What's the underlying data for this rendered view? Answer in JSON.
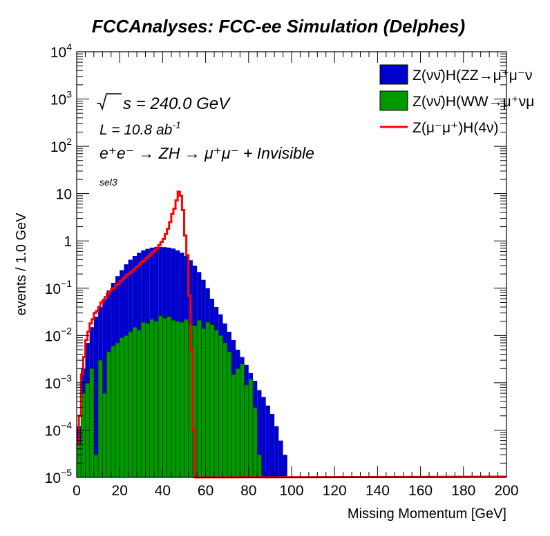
{
  "chart_data": {
    "type": "area",
    "title": "FCCAnalyses: FCC-ee Simulation (Delphes)",
    "xlabel": "Missing Momentum [GeV]",
    "ylabel": "events / 1.0 GeV",
    "xlim": [
      0,
      200
    ],
    "ylim": [
      1e-05,
      10000
    ],
    "y_scale": "log",
    "x_ticks": [
      {
        "value": 0,
        "label": "0"
      },
      {
        "value": 20,
        "label": "20"
      },
      {
        "value": 40,
        "label": "40"
      },
      {
        "value": 60,
        "label": "60"
      },
      {
        "value": 80,
        "label": "80"
      },
      {
        "value": 100,
        "label": "100"
      },
      {
        "value": 120,
        "label": "120"
      },
      {
        "value": 140,
        "label": "140"
      },
      {
        "value": 160,
        "label": "160"
      },
      {
        "value": 180,
        "label": "180"
      },
      {
        "value": 200,
        "label": "200"
      }
    ],
    "y_ticks": [
      {
        "value": 10000,
        "base": "10",
        "exp": "4"
      },
      {
        "value": 1000,
        "base": "10",
        "exp": "3"
      },
      {
        "value": 100,
        "base": "10",
        "exp": "2"
      },
      {
        "value": 10,
        "base": "10",
        "exp": ""
      },
      {
        "value": 1,
        "base": "1",
        "exp": ""
      },
      {
        "value": 0.1,
        "base": "10",
        "exp": "−1"
      },
      {
        "value": 0.01,
        "base": "10",
        "exp": "−2"
      },
      {
        "value": 0.001,
        "base": "10",
        "exp": "−3"
      },
      {
        "value": 0.0001,
        "base": "10",
        "exp": "−4"
      },
      {
        "value": 1e-05,
        "base": "10",
        "exp": "−5"
      }
    ],
    "annotations": {
      "sqrt_s": "s = 240.0 GeV",
      "lumi": "L = 10.8 ab",
      "lumi_exp": "-1",
      "process": "e⁺e⁻ → ZH → μ⁺μ⁻ + Invisible",
      "selection": "sel3"
    },
    "legend_position": "top-right",
    "legend": [
      {
        "label": "Z(νν̄)H(ZZ→μ⁺μ⁻ν",
        "color": "#0000cc",
        "style": "fill"
      },
      {
        "label": "Z(νν̄)H(WW→μ⁺νμ",
        "color": "#009900",
        "style": "fill"
      },
      {
        "label": "Z(μ⁻μ⁺)H(4ν)",
        "color": "#ff0000",
        "style": "line"
      }
    ],
    "bin_width": 1.0,
    "series": [
      {
        "name": "Z(νν̄)H(ZZ→μ⁺μ⁻ν",
        "color": "#0000cc",
        "style": "stacked-fill",
        "x": [
          1,
          3,
          5,
          7,
          9,
          11,
          13,
          15,
          17,
          19,
          21,
          23,
          25,
          27,
          29,
          31,
          33,
          35,
          37,
          39,
          41,
          43,
          45,
          47,
          49,
          51,
          53,
          55,
          57,
          59,
          61,
          63,
          65,
          67,
          69,
          71,
          73,
          75,
          77,
          79,
          81,
          83,
          85,
          87,
          89,
          91,
          93,
          95,
          97
        ],
        "values": [
          0.00012,
          0.002,
          0.007,
          0.015,
          0.025,
          0.04,
          0.06,
          0.09,
          0.13,
          0.18,
          0.24,
          0.32,
          0.4,
          0.48,
          0.56,
          0.63,
          0.68,
          0.72,
          0.74,
          0.75,
          0.74,
          0.72,
          0.69,
          0.63,
          0.56,
          0.48,
          0.39,
          0.3,
          0.22,
          0.15,
          0.1,
          0.06,
          0.04,
          0.028,
          0.018,
          0.012,
          0.008,
          0.005,
          0.0035,
          0.0024,
          0.0016,
          0.0011,
          0.0007,
          0.0005,
          0.00033,
          0.00022,
          0.00012,
          6e-05,
          3e-05
        ]
      },
      {
        "name": "Z(νν̄)H(WW→μ⁺νμ",
        "color": "#009900",
        "style": "fill",
        "x": [
          1,
          3,
          5,
          7,
          9,
          11,
          13,
          15,
          17,
          19,
          21,
          23,
          25,
          27,
          29,
          31,
          33,
          35,
          37,
          39,
          41,
          43,
          45,
          47,
          49,
          51,
          53,
          55,
          57,
          59,
          61,
          63,
          65,
          67,
          69,
          71,
          73,
          75,
          77,
          79,
          81,
          83,
          85,
          87,
          89,
          91,
          93,
          95,
          97
        ],
        "values": [
          5e-05,
          0.0006,
          0.001,
          0.002,
          3e-05,
          0.003,
          0.0006,
          0.0045,
          0.006,
          0.007,
          0.009,
          0.01,
          0.012,
          0.015,
          0.013,
          0.019,
          0.018,
          0.022,
          0.02,
          0.026,
          0.023,
          0.025,
          0.021,
          0.02,
          0.019,
          0.022,
          0.017,
          0.016,
          0.021,
          0.014,
          0.019,
          0.017,
          0.013,
          0.01,
          0.007,
          0.0045,
          0.0015,
          0.002,
          0.0025,
          0.0009,
          0.0012,
          0.0003,
          3e-05,
          1e-05,
          1e-05,
          1e-05,
          1e-05,
          1e-05,
          1e-05
        ]
      },
      {
        "name": "Z(μ⁻μ⁺)H(4ν)",
        "color": "#ff0000",
        "style": "line",
        "x": [
          0.5,
          1.5,
          2.5,
          3.5,
          4.5,
          5.5,
          6.5,
          7.5,
          8.5,
          9.5,
          10.5,
          11.5,
          12.5,
          13.5,
          14.5,
          15.5,
          16.5,
          17.5,
          18.5,
          19.5,
          20.5,
          21.5,
          22.5,
          23.5,
          24.5,
          25.5,
          26.5,
          27.5,
          28.5,
          29.5,
          30.5,
          31.5,
          32.5,
          33.5,
          34.5,
          35.5,
          36.5,
          37.5,
          38.5,
          39.5,
          40.5,
          41.5,
          42.5,
          43.5,
          44.5,
          45.5,
          46.5,
          47.5,
          48.5,
          49.5,
          50.5,
          51.5,
          52.5,
          53.5,
          54.5,
          55.5,
          56.5,
          57.5,
          58.5,
          59.5,
          60.5
        ],
        "values": [
          5e-05,
          0.0002,
          0.0015,
          0.0035,
          0.008,
          0.012,
          0.018,
          0.022,
          0.03,
          0.033,
          0.04,
          0.05,
          0.055,
          0.065,
          0.075,
          0.085,
          0.095,
          0.1,
          0.115,
          0.125,
          0.14,
          0.155,
          0.17,
          0.19,
          0.2,
          0.22,
          0.24,
          0.27,
          0.29,
          0.32,
          0.36,
          0.38,
          0.43,
          0.47,
          0.52,
          0.58,
          0.64,
          0.72,
          0.82,
          0.95,
          1.1,
          1.4,
          1.8,
          2.5,
          3.7,
          4.8,
          7.2,
          11.0,
          9.0,
          4.5,
          1.3,
          0.5,
          0.07,
          0.005,
          0.0001,
          1e-05,
          1e-05,
          1e-05,
          1e-05,
          1e-05,
          1e-05
        ]
      }
    ]
  }
}
